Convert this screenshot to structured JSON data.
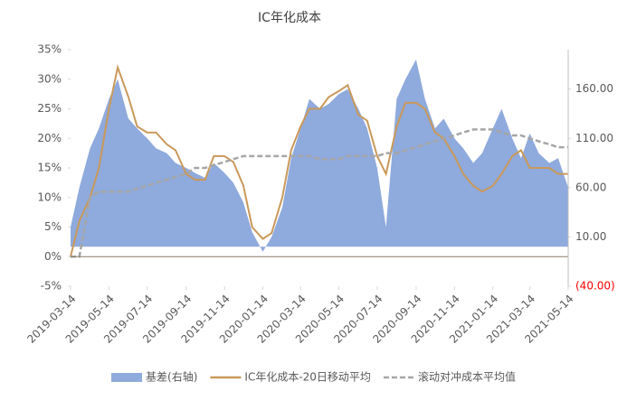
{
  "chart_data": {
    "type": "line",
    "title": "IC年化成本",
    "x": [
      "2019-03-14",
      "2019-03-28",
      "2019-04-14",
      "2019-04-28",
      "2019-05-14",
      "2019-05-28",
      "2019-06-14",
      "2019-06-28",
      "2019-07-14",
      "2019-07-28",
      "2019-08-14",
      "2019-08-28",
      "2019-09-14",
      "2019-09-28",
      "2019-10-14",
      "2019-10-28",
      "2019-11-14",
      "2019-11-28",
      "2019-12-14",
      "2019-12-28",
      "2020-01-14",
      "2020-01-28",
      "2020-02-14",
      "2020-02-28",
      "2020-03-14",
      "2020-03-28",
      "2020-04-14",
      "2020-04-28",
      "2020-05-14",
      "2020-05-28",
      "2020-06-14",
      "2020-06-28",
      "2020-07-14",
      "2020-07-28",
      "2020-08-14",
      "2020-08-28",
      "2020-09-14",
      "2020-09-28",
      "2020-10-14",
      "2020-10-28",
      "2020-11-14",
      "2020-11-28",
      "2020-12-14",
      "2020-12-28",
      "2021-01-14",
      "2021-01-28",
      "2021-02-14",
      "2021-02-28",
      "2021-03-14",
      "2021-03-28",
      "2021-04-14",
      "2021-04-28",
      "2021-05-14"
    ],
    "xlim": [
      "2019-03-14",
      "2021-05-14"
    ],
    "xticks": [
      "2019-03-14",
      "2019-05-14",
      "2019-07-14",
      "2019-09-14",
      "2019-11-14",
      "2020-01-14",
      "2020-03-14",
      "2020-05-14",
      "2020-07-14",
      "2020-09-14",
      "2020-11-14",
      "2021-01-14",
      "2021-03-14",
      "2021-05-14"
    ],
    "ylim": [
      -5,
      35
    ],
    "yticks": [
      {
        "value": -5,
        "label": "-5%"
      },
      {
        "value": 0,
        "label": "0%"
      },
      {
        "value": 5,
        "label": "5%"
      },
      {
        "value": 10,
        "label": "10%"
      },
      {
        "value": 15,
        "label": "15%"
      },
      {
        "value": 20,
        "label": "20%"
      },
      {
        "value": 25,
        "label": "25%"
      },
      {
        "value": 30,
        "label": "30%"
      },
      {
        "value": 35,
        "label": "35%"
      }
    ],
    "y2lim": [
      -40,
      200
    ],
    "y2ticks": [
      {
        "value": -40,
        "label": "(40.00)"
      },
      {
        "value": 10,
        "label": "10.00"
      },
      {
        "value": 60,
        "label": "60.00"
      },
      {
        "value": 110,
        "label": "110.00"
      },
      {
        "value": 160,
        "label": "160.00"
      }
    ],
    "y2_negative_color": "#ff0000",
    "legend": "bottom",
    "series": [
      {
        "name": "基差(右轴)",
        "type": "area",
        "axis": "y2",
        "color": "#8faadc",
        "values": [
          20,
          60,
          100,
          120,
          150,
          170,
          130,
          120,
          110,
          100,
          95,
          85,
          80,
          75,
          70,
          85,
          75,
          65,
          45,
          15,
          -5,
          10,
          40,
          90,
          120,
          150,
          140,
          145,
          155,
          160,
          140,
          120,
          80,
          20,
          150,
          170,
          190,
          150,
          120,
          130,
          110,
          100,
          85,
          95,
          120,
          140,
          110,
          90,
          115,
          95,
          85,
          90,
          60
        ]
      },
      {
        "name": "IC年化成本-20日移动平均",
        "type": "line",
        "color": "#c9995a",
        "values": [
          0,
          6,
          10,
          15,
          25,
          32,
          27,
          22,
          21,
          21,
          19,
          18,
          14,
          13,
          13,
          17,
          17,
          16,
          12,
          5,
          3,
          4,
          10,
          18,
          22,
          25,
          25,
          27,
          28,
          29,
          24,
          23,
          17,
          14,
          22,
          26,
          26,
          25,
          21,
          20,
          17,
          14,
          12,
          11,
          12,
          14,
          17,
          18,
          15,
          15,
          15,
          14,
          14
        ]
      },
      {
        "name": "滚动对冲成本平均值",
        "type": "line",
        "dash": true,
        "color": "#a6a6a6",
        "values": [
          0,
          0,
          10,
          11,
          11,
          11,
          11,
          11.5,
          12,
          12.5,
          13,
          13.5,
          14,
          15,
          15,
          15.5,
          16,
          16.5,
          17,
          17,
          17,
          17,
          17,
          17,
          17,
          17,
          16.5,
          16.5,
          16.5,
          17,
          17,
          17,
          17,
          17.5,
          17.5,
          18,
          18.5,
          19,
          19.5,
          20,
          20.5,
          21,
          21.5,
          21.5,
          21.5,
          21,
          20.5,
          20.5,
          20,
          19.5,
          19,
          18.5,
          18.5
        ]
      }
    ]
  }
}
